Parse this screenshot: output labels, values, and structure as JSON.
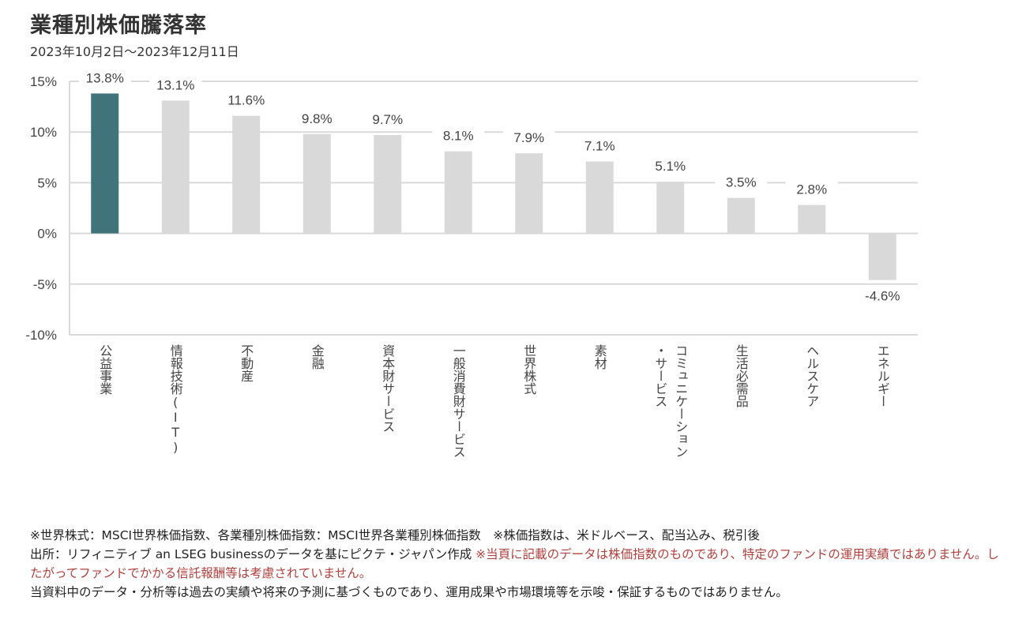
{
  "title": "業種別株価騰落率",
  "subtitle": "2023年10月2日〜2023年12月11日",
  "colors": {
    "highlight": "#40737a",
    "bar": "#d9d9d9",
    "grid": "#d9d9d9",
    "note_red": "#b0413e"
  },
  "chart_data": {
    "type": "bar",
    "categories": [
      "公益事業",
      "情報技術(IT)",
      "不動産",
      "金融",
      "資本財サービス",
      "一般消費財サービス",
      "世界株式",
      "素材",
      "コミュニケーション・サービス",
      "生活必需品",
      "ヘルスケア",
      "エネルギー"
    ],
    "category_lines": [
      [
        "公益事業"
      ],
      [
        "情報技術(IT)"
      ],
      [
        "不動産"
      ],
      [
        "金融"
      ],
      [
        "資本財サービス"
      ],
      [
        "一般消費財サービス"
      ],
      [
        "世界株式"
      ],
      [
        "素材"
      ],
      [
        "コミュニケーション",
        "・サービス"
      ],
      [
        "生活必需品"
      ],
      [
        "ヘルスケア"
      ],
      [
        "エネルギー"
      ]
    ],
    "values": [
      13.8,
      13.1,
      11.6,
      9.8,
      9.7,
      8.1,
      7.9,
      7.1,
      5.1,
      3.5,
      2.8,
      -4.6
    ],
    "value_labels": [
      "13.8%",
      "13.1%",
      "11.6%",
      "9.8%",
      "9.7%",
      "8.1%",
      "7.9%",
      "7.1%",
      "5.1%",
      "3.5%",
      "2.8%",
      "-4.6%"
    ],
    "highlight_index": 0,
    "yticks": [
      15,
      10,
      5,
      0,
      -5,
      -10
    ],
    "ytick_labels": [
      "15%",
      "10%",
      "5%",
      "0%",
      "-5%",
      "-10%"
    ],
    "ylim": [
      -10,
      15
    ],
    "grid": true,
    "legend": "none"
  },
  "notes": {
    "line1": "※世界株式：MSCI世界株価指数、各業種別株価指数：MSCI世界各業種別株価指数　※株価指数は、米ドルベース、配当込み、税引後",
    "line2_source": "出所：リフィニティブ an LSEG businessのデータを基にピクテ・ジャパン作成",
    "line2_warning": "※当頁に記載のデータは株価指数のものであり、特定のファンドの運用実績ではありません。したがってファンドでかかる信託報酬等は考慮されていません。",
    "line3": "当資料中のデータ・分析等は過去の実績や将来の予測に基づくものであり、運用成果や市場環境等を示唆・保証するものではありません。"
  }
}
